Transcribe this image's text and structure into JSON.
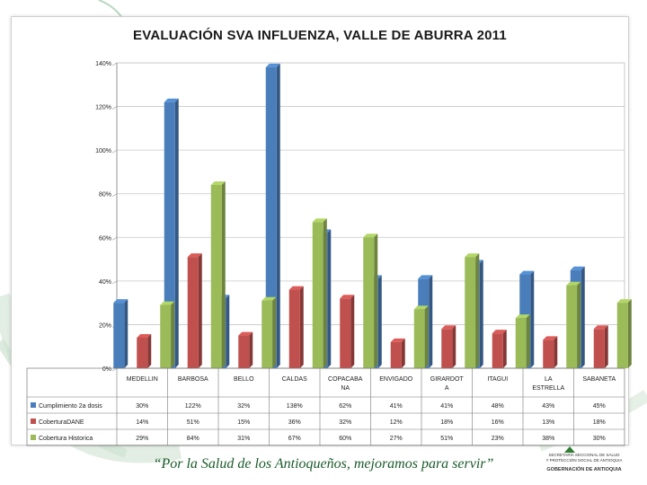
{
  "colors": {
    "blue": "#4a7ebb",
    "red": "#c0504d",
    "green": "#9bbb59",
    "slogan": "#1a5a2a"
  },
  "chart_data": {
    "type": "bar",
    "title": "EVALUACIÓN SVA INFLUENZA, VALLE DE ABURRA  2011",
    "ylim": [
      0,
      140
    ],
    "yticks": [
      "0%",
      "20%",
      "40%",
      "60%",
      "80%",
      "100%",
      "120%",
      "140%"
    ],
    "ytick_values": [
      0,
      20,
      40,
      60,
      80,
      100,
      120,
      140
    ],
    "categories": [
      "MEDELLIN",
      "BARBOSA",
      "BELLO",
      "CALDAS",
      "COPACABANA",
      "ENVIGADO",
      "GIRARDOTA",
      "ITAGUI",
      "LA ESTRELLA",
      "SABANETA"
    ],
    "category_labels": [
      [
        "MEDELLIN"
      ],
      [
        "BARBOSA"
      ],
      [
        "BELLO"
      ],
      [
        "CALDAS"
      ],
      [
        "COPACABA",
        "NA"
      ],
      [
        "ENVIGADO"
      ],
      [
        "GIRARDOT",
        "A"
      ],
      [
        "ITAGUI"
      ],
      [
        "LA",
        "ESTRELLA"
      ],
      [
        "SABANETA"
      ]
    ],
    "series": [
      {
        "name": "Cumplimiento 2a dosis",
        "color": "#4a7ebb",
        "values": [
          30,
          122,
          32,
          138,
          62,
          41,
          41,
          48,
          43,
          45
        ],
        "labels": [
          "30%",
          "122%",
          "32%",
          "138%",
          "62%",
          "41%",
          "41%",
          "48%",
          "43%",
          "45%"
        ]
      },
      {
        "name": "CoberturaDANE",
        "color": "#c0504d",
        "values": [
          14,
          51,
          15,
          36,
          32,
          12,
          18,
          16,
          13,
          18
        ],
        "labels": [
          "14%",
          "51%",
          "15%",
          "36%",
          "32%",
          "12%",
          "18%",
          "16%",
          "13%",
          "18%"
        ]
      },
      {
        "name": "Cobertura Historica",
        "color": "#9bbb59",
        "values": [
          29,
          84,
          31,
          67,
          60,
          27,
          51,
          23,
          38,
          30
        ],
        "labels": [
          "29%",
          "84%",
          "31%",
          "67%",
          "60%",
          "27%",
          "51%",
          "23%",
          "38%",
          "30%"
        ]
      }
    ],
    "legend": "data table below chart",
    "grid": true
  },
  "footer": {
    "slogan": "“Por la Salud de los Antioqueños, mejoramos para servir”",
    "logo_line1": "SECRETARÍA SECCIONAL DE SALUD",
    "logo_line2": "Y PROTECCIÓN SOCIAL DE ANTIOQUIA",
    "logo_line3": "GOBERNACIÓN DE ANTIOQUIA"
  }
}
